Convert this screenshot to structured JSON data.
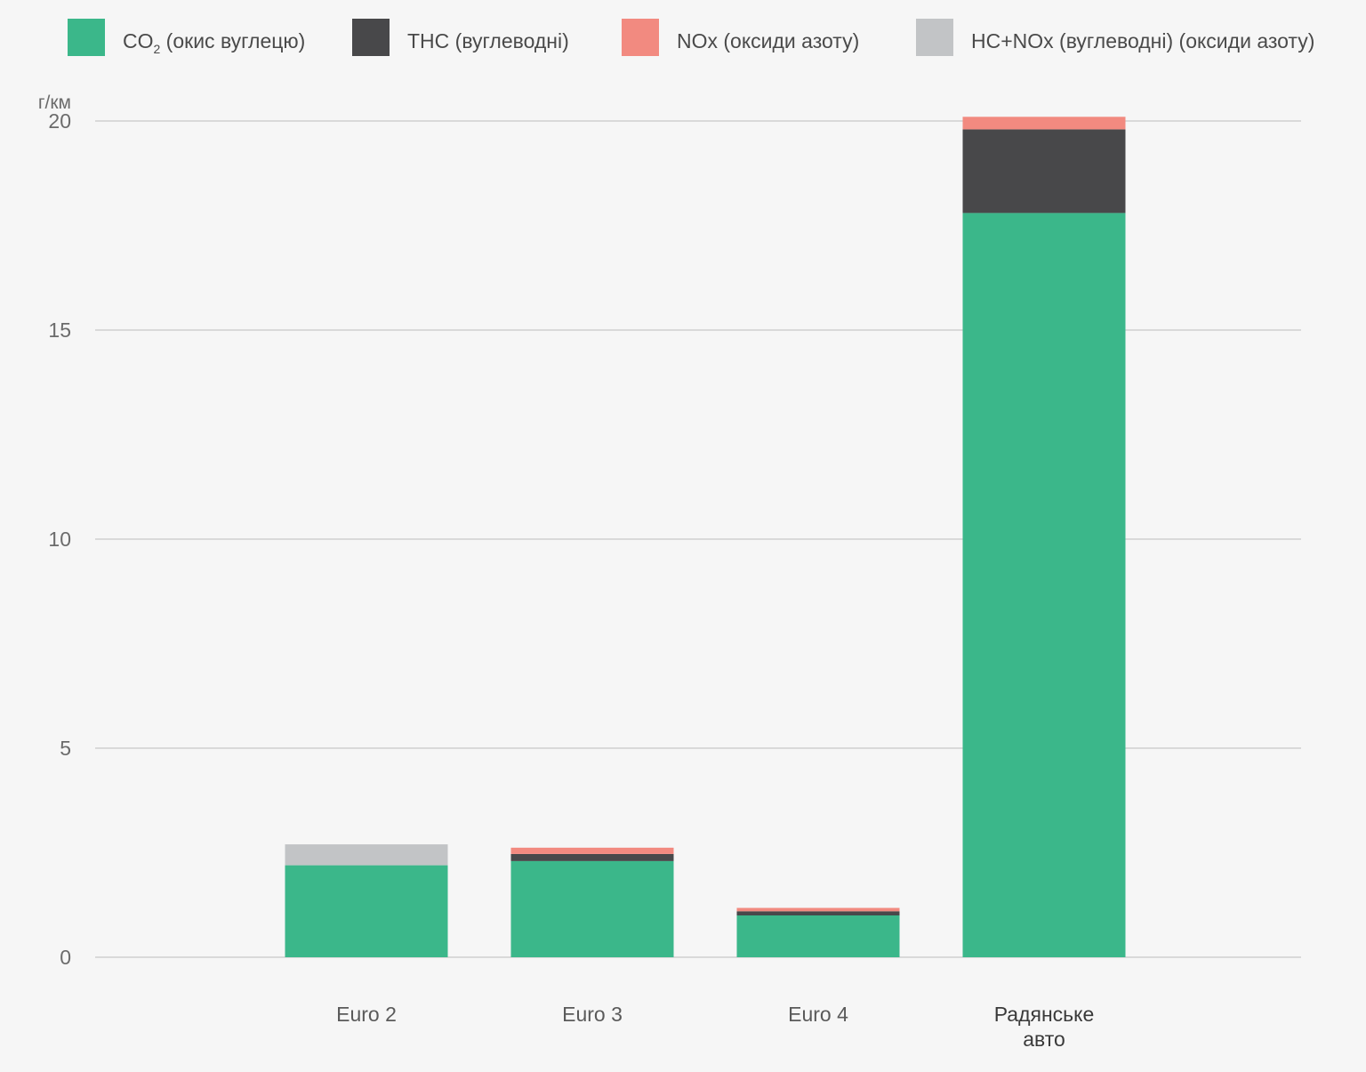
{
  "chart_data": {
    "type": "bar",
    "stacked": true,
    "ylabel": "г/км",
    "ylim": [
      0,
      20
    ],
    "yticks": [
      0,
      5,
      10,
      15,
      20
    ],
    "grid": true,
    "legend_position": "top",
    "categories": [
      {
        "label_lines": [
          "Euro 2"
        ],
        "emphasis": false
      },
      {
        "label_lines": [
          "Euro 3"
        ],
        "emphasis": false
      },
      {
        "label_lines": [
          "Euro 4"
        ],
        "emphasis": false
      },
      {
        "label_lines": [
          "Радянське",
          "авто"
        ],
        "emphasis": true
      }
    ],
    "series": [
      {
        "name": "CO",
        "name_subscript": "2",
        "name_rest": " (окис вуглецю)",
        "color": "#3bb78a",
        "values": [
          2.2,
          2.3,
          1.0,
          17.8
        ]
      },
      {
        "name": "THC (вуглеводні)",
        "color": "#48484a",
        "values": [
          0,
          0.17,
          0.1,
          2.0
        ]
      },
      {
        "name": "NOx (оксиди азоту)",
        "color": "#f28a80",
        "values": [
          0,
          0.15,
          0.08,
          0.3
        ]
      },
      {
        "name": "HC+NOx (вуглеводні) (оксиди азоту)",
        "color": "#c2c4c6",
        "values": [
          0.5,
          0,
          0,
          0
        ]
      }
    ]
  }
}
